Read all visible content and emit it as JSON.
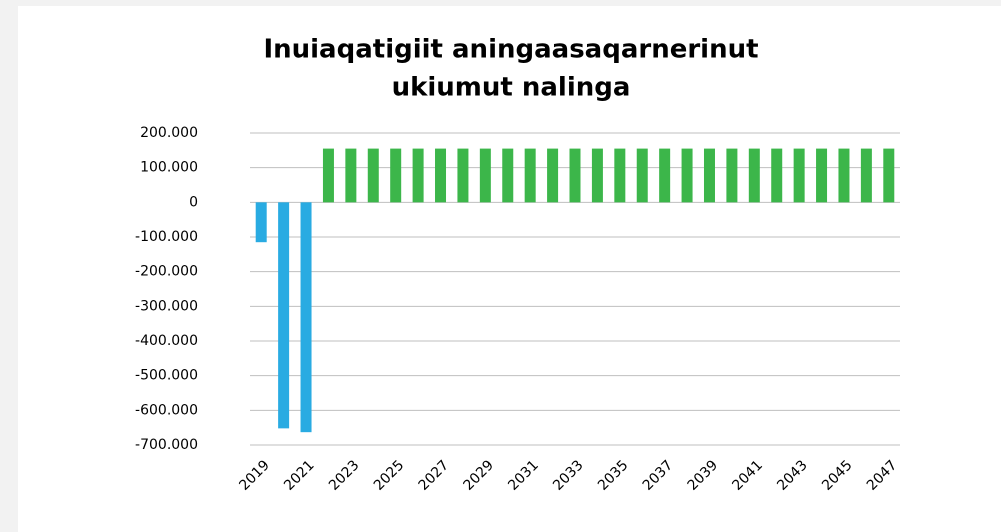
{
  "chart_data": {
    "type": "bar",
    "title": [
      "Inuiaqatigiit aningaasaqarnerinut",
      "ukiumut nalinga"
    ],
    "categories": [
      "2019",
      null,
      "2021",
      null,
      "2023",
      null,
      "2025",
      null,
      "2027",
      null,
      "2029",
      null,
      "2031",
      null,
      "2033",
      null,
      "2035",
      null,
      "2037",
      null,
      "2039",
      null,
      "2041",
      null,
      "2043",
      null,
      "2045",
      null,
      "2047"
    ],
    "values": [
      -115000,
      -652000,
      -663000,
      155000,
      155000,
      155000,
      155000,
      155000,
      155000,
      155000,
      155000,
      155000,
      155000,
      155000,
      155000,
      155000,
      155000,
      155000,
      155000,
      155000,
      155000,
      155000,
      155000,
      155000,
      155000,
      155000,
      155000,
      155000,
      155000
    ],
    "colors": [
      "#29abe2",
      "#29abe2",
      "#29abe2",
      "#3cb64a",
      "#3cb64a",
      "#3cb64a",
      "#3cb64a",
      "#3cb64a",
      "#3cb64a",
      "#3cb64a",
      "#3cb64a",
      "#3cb64a",
      "#3cb64a",
      "#3cb64a",
      "#3cb64a",
      "#3cb64a",
      "#3cb64a",
      "#3cb64a",
      "#3cb64a",
      "#3cb64a",
      "#3cb64a",
      "#3cb64a",
      "#3cb64a",
      "#3cb64a",
      "#3cb64a",
      "#3cb64a",
      "#3cb64a",
      "#3cb64a",
      "#3cb64a"
    ],
    "ylim": [
      -700000,
      200000
    ],
    "yticks": [
      {
        "value": 200000,
        "label": "200.000"
      },
      {
        "value": 100000,
        "label": "100.000"
      },
      0,
      {
        "value": -100000,
        "label": "-100.000"
      },
      {
        "value": -200000,
        "label": "-200.000"
      },
      {
        "value": -300000,
        "label": "-300.000"
      },
      {
        "value": -400000,
        "label": "-400.000"
      },
      {
        "value": -500000,
        "label": "-500.000"
      },
      {
        "value": -600000,
        "label": "-600.000"
      },
      {
        "value": -700000,
        "label": "-700.000"
      }
    ],
    "grid": true
  }
}
